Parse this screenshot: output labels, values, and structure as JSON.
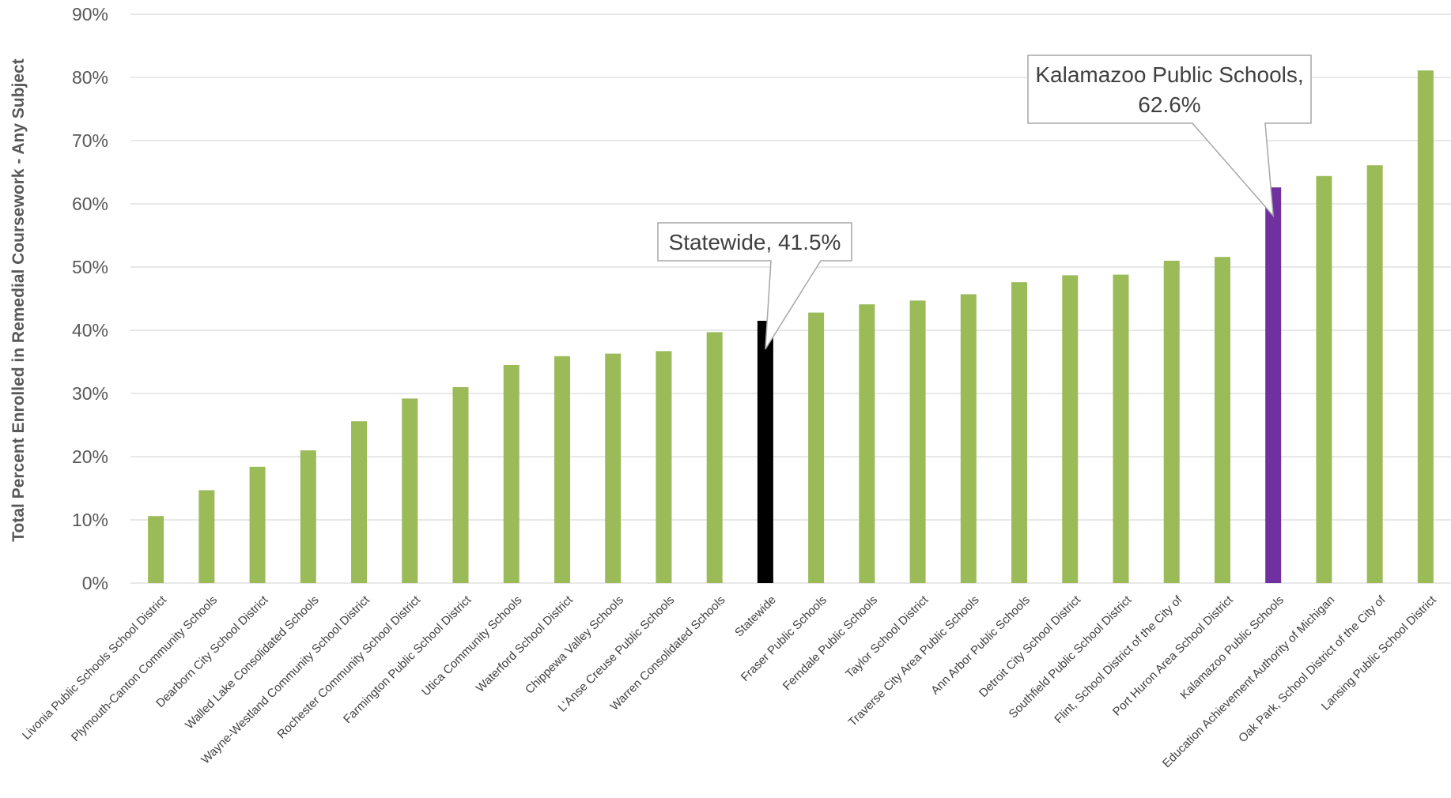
{
  "chart_data": {
    "type": "bar",
    "title": "",
    "xlabel": "",
    "ylabel": "Total Percent Enrolled in Remedial Coursework - Any Subject",
    "ylim": [
      0,
      90
    ],
    "yticks": [
      "0%",
      "10%",
      "20%",
      "30%",
      "40%",
      "50%",
      "60%",
      "70%",
      "80%",
      "90%"
    ],
    "grid": true,
    "legend": "none",
    "categories": [
      "Livonia Public Schools School District",
      "Plymouth-Canton Community Schools",
      "Dearborn City School District",
      "Walled Lake Consolidated Schools",
      "Wayne-Westland Community School District",
      "Rochester Community School District",
      "Farmington Public School District",
      "Utica Community Schools",
      "Waterford School District",
      "Chippewa Valley Schools",
      "L'Anse Creuse Public Schools",
      "Warren Consolidated Schools",
      "Statewide",
      "Fraser Public Schools",
      "Ferndale Public Schools",
      "Taylor School District",
      "Traverse City Area Public Schools",
      "Ann Arbor Public Schools",
      "Detroit City School District",
      "Southfield Public School District",
      "Flint, School District of the City of",
      "Port Huron Area School District",
      "Kalamazoo Public Schools",
      "Education Achievement Authority of Michigan",
      "Oak Park, School District of the City of",
      "Lansing Public School District"
    ],
    "values": [
      10.6,
      14.7,
      18.4,
      21.0,
      25.6,
      29.2,
      31.0,
      34.5,
      35.9,
      36.3,
      36.7,
      39.7,
      41.5,
      42.8,
      44.1,
      44.7,
      45.7,
      47.6,
      48.7,
      48.8,
      51.0,
      51.6,
      62.6,
      64.4,
      66.1,
      81.1
    ],
    "colors": {
      "default": "#9bbb59",
      "Statewide": "#000000",
      "Kalamazoo Public Schools": "#7030a0"
    },
    "annotations": [
      {
        "category": "Statewide",
        "lines": [
          "Statewide, 41.5%"
        ]
      },
      {
        "category": "Kalamazoo Public Schools",
        "lines": [
          "Kalamazoo Public Schools,",
          "62.6%"
        ]
      }
    ]
  }
}
